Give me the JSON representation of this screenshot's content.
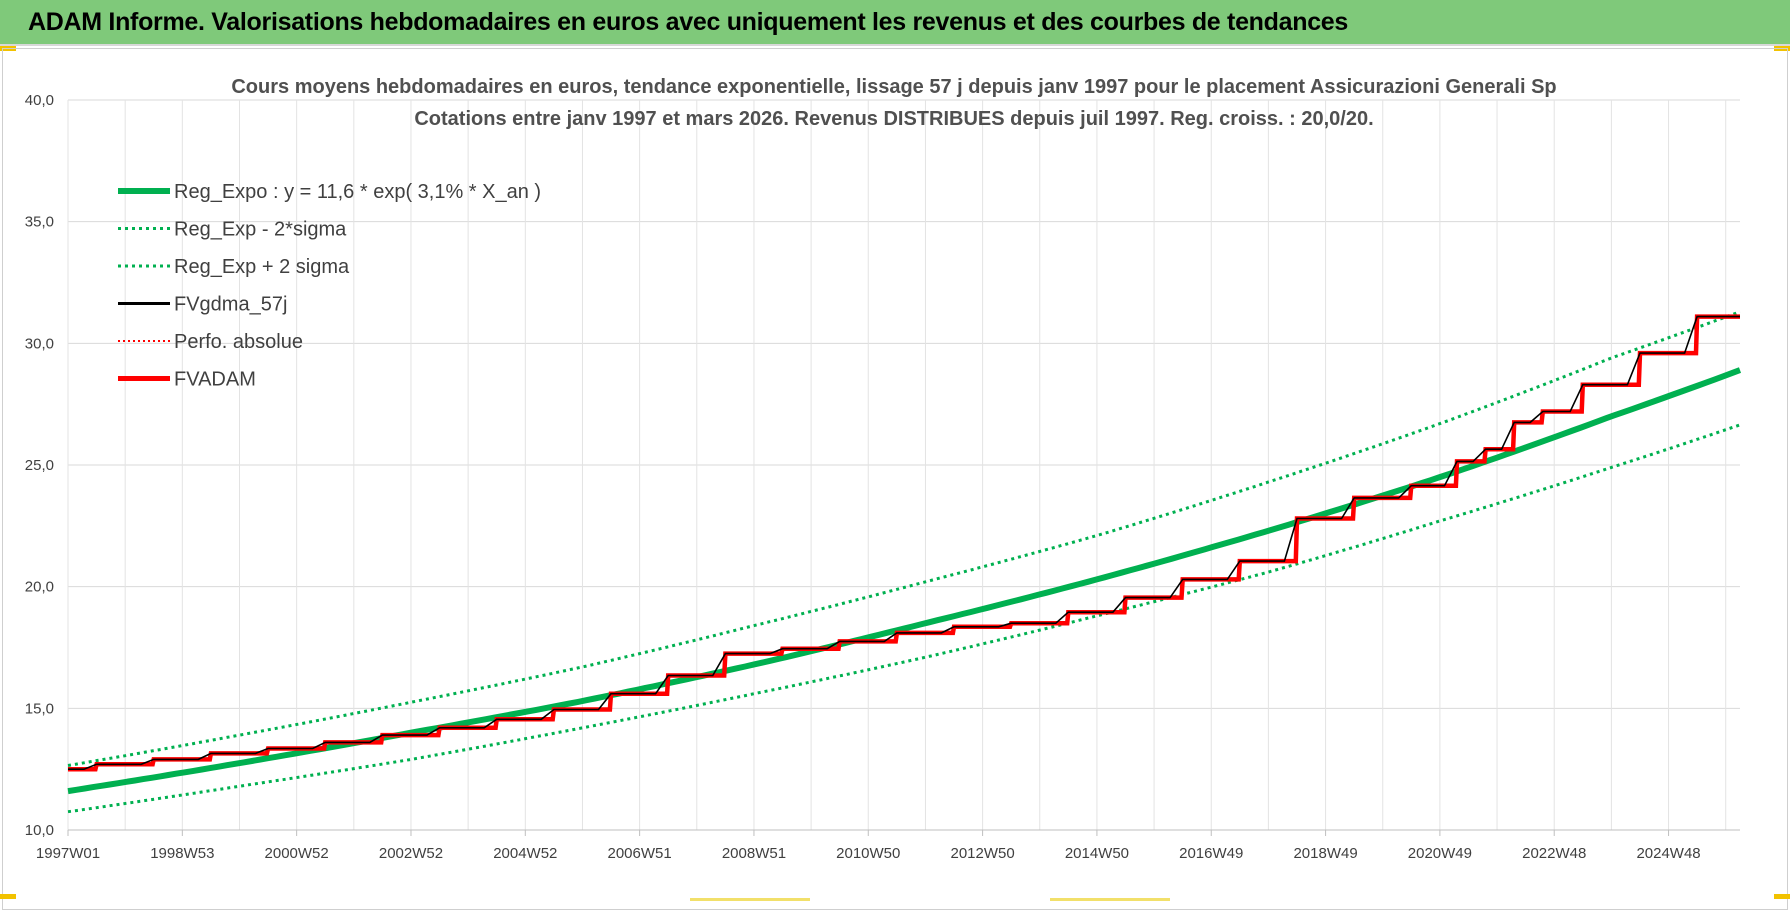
{
  "banner": {
    "title": "ADAM Informe. Valorisations hebdomadaires en euros avec uniquement les revenus et des courbes de tendances"
  },
  "colors": {
    "banner_bg": "#7fc97a",
    "reg_green": "#00b050",
    "fv_red": "#ff0000",
    "fv_black": "#000000"
  },
  "chart_data": {
    "type": "line",
    "title": "Cours moyens hebdomadaires en euros, tendance exponentielle, lissage 57 j depuis janv 1997  pour le placement Assicurazioni Generali Sp",
    "subtitle": "Cotations entre janv 1997 et mars 2026. Revenus DISTRIBUES depuis juil 1997. Reg. croiss. : 20,0/20.",
    "x_range": [
      1997.0,
      2026.25
    ],
    "ylim": [
      10,
      40
    ],
    "y_ticks": [
      "10,0",
      "15,0",
      "20,0",
      "25,0",
      "30,0",
      "35,0",
      "40,0"
    ],
    "x_ticks": [
      "1997W01",
      "1998W53",
      "2000W52",
      "2002W52",
      "2004W52",
      "2006W51",
      "2008W51",
      "2010W50",
      "2012W50",
      "2014W50",
      "2016W49",
      "2018W49",
      "2020W49",
      "2022W48",
      "2024W48"
    ],
    "x_tick_years": [
      1997.0,
      1999.0,
      2001.0,
      2003.0,
      2005.0,
      2007.0,
      2009.0,
      2011.0,
      2013.0,
      2015.0,
      2017.0,
      2019.0,
      2021.0,
      2023.0,
      2025.0
    ],
    "grid": true,
    "legend_position": "top-left",
    "series": [
      {
        "name": "Reg_Expo : y = 11,6 * exp( 3,1% *  X_an )",
        "x": [
          1997.0,
          2000.0,
          2003.0,
          2006.0,
          2009.0,
          2012.0,
          2015.0,
          2018.0,
          2021.0,
          2024.0,
          2026.25
        ],
        "values": [
          11.6,
          12.75,
          14.0,
          15.3,
          16.8,
          18.5,
          20.3,
          22.3,
          24.5,
          27.0,
          28.9
        ]
      },
      {
        "name": "Reg_Exp - 2*sigma",
        "x": [
          1997.0,
          2000.0,
          2003.0,
          2006.0,
          2009.0,
          2012.0,
          2015.0,
          2018.0,
          2021.0,
          2024.0,
          2026.25
        ],
        "values": [
          10.75,
          11.8,
          12.9,
          14.2,
          15.6,
          17.1,
          18.8,
          20.6,
          22.7,
          24.9,
          26.65
        ]
      },
      {
        "name": "Reg_Exp + 2 sigma",
        "x": [
          1997.0,
          2000.0,
          2003.0,
          2006.0,
          2009.0,
          2012.0,
          2015.0,
          2018.0,
          2021.0,
          2024.0,
          2026.25
        ],
        "values": [
          12.65,
          13.9,
          15.25,
          16.7,
          18.4,
          20.2,
          22.1,
          24.3,
          26.7,
          29.4,
          31.3
        ]
      },
      {
        "name": "FVgdma_57j",
        "x": [
          1997.0,
          1997.5,
          1998.5,
          1999.5,
          2000.5,
          2001.5,
          2002.5,
          2003.5,
          2004.5,
          2005.5,
          2006.5,
          2007.5,
          2008.5,
          2009.5,
          2010.5,
          2011.5,
          2012.5,
          2013.5,
          2014.5,
          2015.5,
          2016.5,
          2017.5,
          2018.5,
          2019.5,
          2020.5,
          2021.3,
          2021.8,
          2022.3,
          2022.8,
          2023.5,
          2024.5,
          2025.5,
          2026.25
        ],
        "values": [
          12.5,
          12.7,
          12.9,
          13.15,
          13.35,
          13.6,
          13.9,
          14.2,
          14.55,
          14.95,
          15.6,
          16.35,
          17.25,
          17.45,
          17.75,
          18.1,
          18.35,
          18.5,
          18.95,
          19.55,
          20.3,
          21.05,
          22.8,
          23.65,
          24.15,
          25.15,
          25.65,
          26.75,
          27.2,
          28.3,
          29.6,
          31.1,
          31.1
        ]
      },
      {
        "name": "Perfo. absolue",
        "x": [],
        "values": []
      },
      {
        "name": "FVADAM",
        "x": [
          1997.0,
          1997.5,
          1998.5,
          1999.5,
          2000.5,
          2001.5,
          2002.5,
          2003.5,
          2004.5,
          2005.5,
          2006.5,
          2007.5,
          2008.5,
          2009.5,
          2010.5,
          2011.5,
          2012.5,
          2013.5,
          2014.5,
          2015.5,
          2016.5,
          2017.5,
          2018.5,
          2019.5,
          2020.5,
          2021.3,
          2021.8,
          2022.3,
          2022.8,
          2023.5,
          2024.5,
          2025.5,
          2026.25
        ],
        "values": [
          12.5,
          12.7,
          12.9,
          13.15,
          13.35,
          13.6,
          13.9,
          14.2,
          14.55,
          14.95,
          15.6,
          16.35,
          17.25,
          17.45,
          17.75,
          18.1,
          18.35,
          18.5,
          18.95,
          19.55,
          20.3,
          21.05,
          22.8,
          23.65,
          24.15,
          25.15,
          25.65,
          26.75,
          27.2,
          28.3,
          29.6,
          31.1,
          31.1
        ]
      }
    ]
  }
}
